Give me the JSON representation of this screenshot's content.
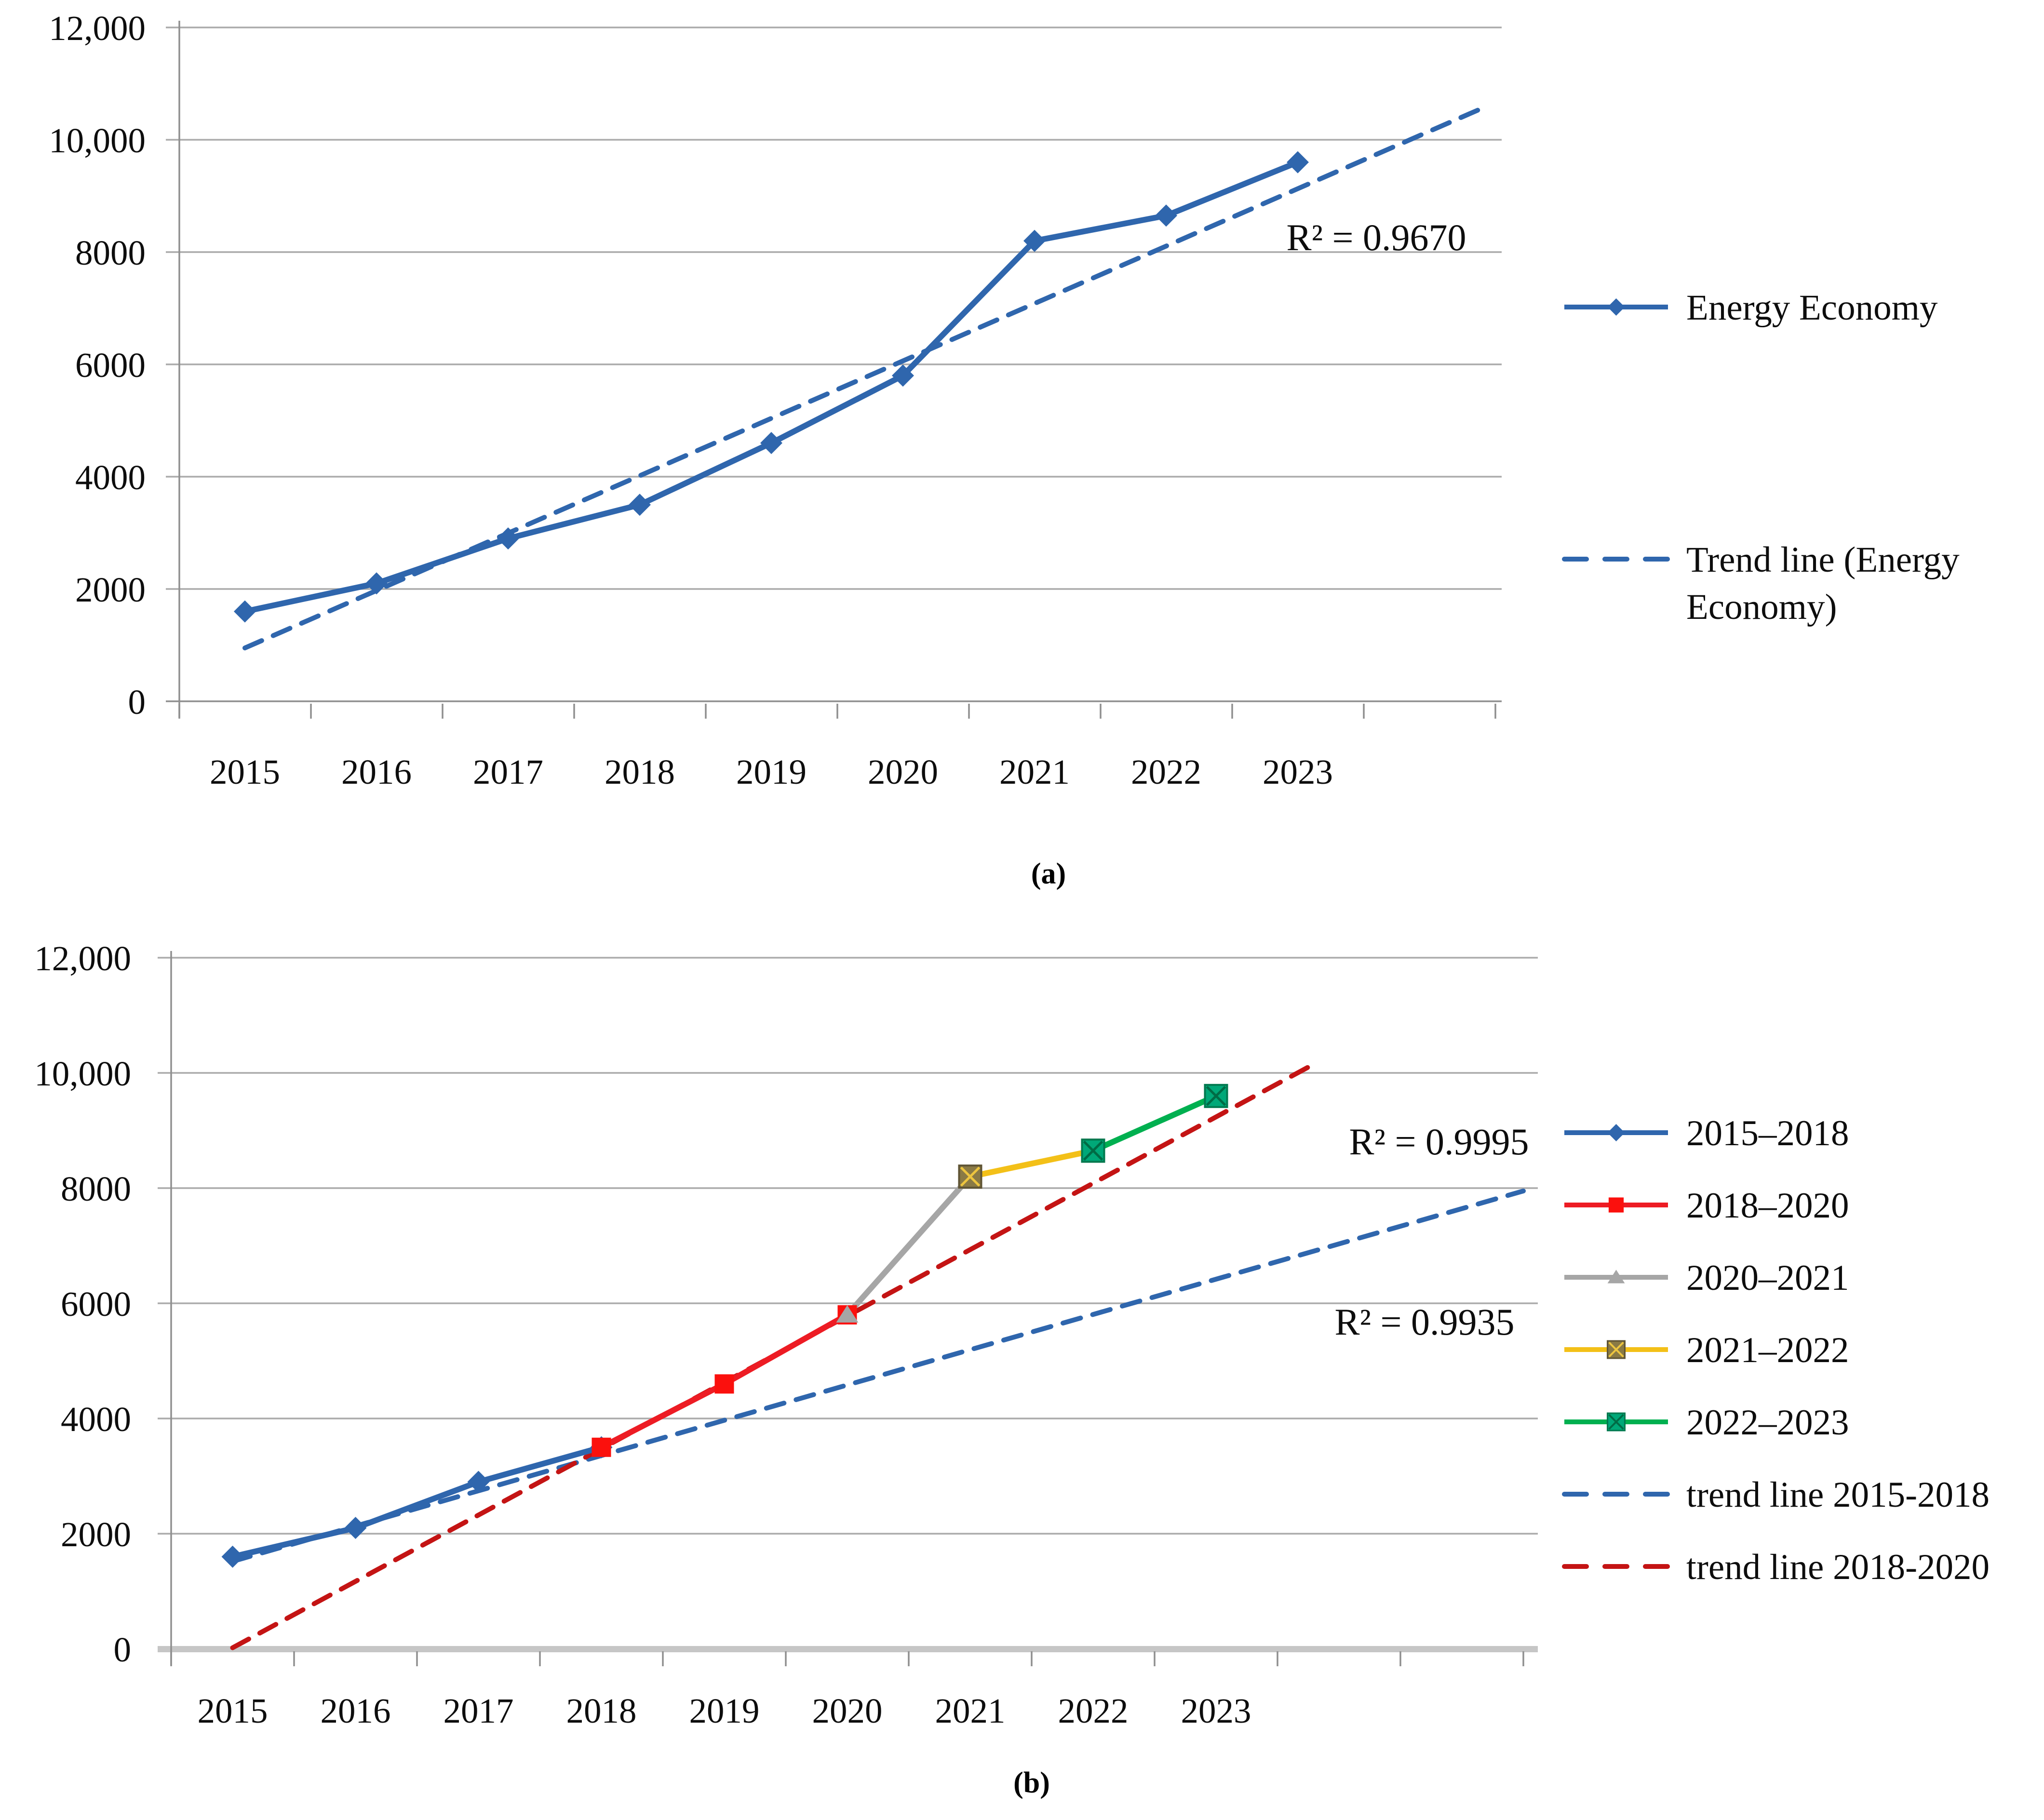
{
  "page": {
    "background_color": "#ffffff",
    "figure_type": "two stacked line charts with trend lines"
  },
  "chart_data": [
    {
      "id": "a",
      "type": "line",
      "caption": "(a)",
      "x": [
        2015,
        2016,
        2017,
        2018,
        2019,
        2020,
        2021,
        2022,
        2023
      ],
      "x_tick_labels": [
        "2015",
        "2016",
        "2017",
        "2018",
        "2019",
        "2020",
        "2021",
        "2022",
        "2023"
      ],
      "ylim": [
        0,
        12000
      ],
      "ytick_values": [
        0,
        2000,
        4000,
        6000,
        8000,
        10000,
        12000
      ],
      "ytick_labels": [
        "0",
        "2000",
        "4000",
        "6000",
        "8000",
        "10,000",
        "12,000"
      ],
      "grid": true,
      "legend_position": "right",
      "series": [
        {
          "name": "Energy Economy",
          "color": "#2f66ad",
          "marker": "diamond",
          "marker_color": "#2f66ad",
          "x": [
            2015,
            2016,
            2017,
            2018,
            2019,
            2020,
            2021,
            2022,
            2023
          ],
          "values": [
            1600,
            2100,
            2900,
            3500,
            4600,
            5800,
            8200,
            8650,
            9600
          ]
        }
      ],
      "trend_lines": [
        {
          "name": "Trend line (Energy Economy)",
          "legend_label_lines": [
            "Trend line (Energy",
            "Economy)"
          ],
          "color": "#2f66ad",
          "style": "dashed",
          "start": {
            "x": 2015,
            "y": 950
          },
          "end": {
            "x": 2024.4,
            "y": 10560
          },
          "r_squared": "R² = 0.9670"
        }
      ]
    },
    {
      "id": "b",
      "type": "line",
      "caption": "(b)",
      "x": [
        2015,
        2016,
        2017,
        2018,
        2019,
        2020,
        2021,
        2022,
        2023
      ],
      "x_tick_labels": [
        "2015",
        "2016",
        "2017",
        "2018",
        "2019",
        "2020",
        "2021",
        "2022",
        "2023"
      ],
      "ylim": [
        0,
        12000
      ],
      "ytick_values": [
        0,
        2000,
        4000,
        6000,
        8000,
        10000,
        12000
      ],
      "ytick_labels": [
        "0",
        "2000",
        "4000",
        "6000",
        "8000",
        "10,000",
        "12,000"
      ],
      "grid": true,
      "legend_position": "right",
      "series": [
        {
          "name": "2015–2018",
          "color": "#2f66ad",
          "marker": "diamond",
          "marker_color": "#2f66ad",
          "x": [
            2015,
            2016,
            2017,
            2018
          ],
          "values": [
            1600,
            2100,
            2900,
            3500
          ]
        },
        {
          "name": "2018–2020",
          "color": "#ed1c24",
          "marker": "square",
          "marker_color": "#fb100d",
          "x": [
            2018,
            2019,
            2020
          ],
          "values": [
            3500,
            4600,
            5800
          ]
        },
        {
          "name": "2020–2021",
          "color": "#a6a6a6",
          "marker": "triangle",
          "marker_color": "#a6a6a6",
          "x": [
            2020,
            2021
          ],
          "values": [
            5800,
            8200
          ]
        },
        {
          "name": "2021–2022",
          "color": "#f3c018",
          "marker": "x-square",
          "marker_color": "#8a7a45",
          "marker_border": "#5f5434",
          "x_stroke": "#edc53f",
          "x": [
            2021,
            2022
          ],
          "values": [
            8200,
            8650
          ]
        },
        {
          "name": "2022–2023",
          "color": "#00b050",
          "marker": "x-square",
          "marker_color": "#00a878",
          "marker_border": "#00794f",
          "x_stroke": "#006b45",
          "x": [
            2022,
            2023
          ],
          "values": [
            8650,
            9600
          ]
        }
      ],
      "trend_lines": [
        {
          "name": "trend line 2015-2018",
          "color": "#2f66ad",
          "style": "dashed",
          "start": {
            "x": 2015,
            "y": 1520
          },
          "end": {
            "x": 2025.5,
            "y": 7950
          },
          "r_squared": "R² = 0.9935"
        },
        {
          "name": "trend line 2018-2020",
          "color": "#c41414",
          "style": "dashed",
          "start": {
            "x": 2015,
            "y": 20
          },
          "end": {
            "x": 2023.75,
            "y": 10100
          },
          "r_squared": "R² = 0.9995"
        }
      ]
    }
  ]
}
